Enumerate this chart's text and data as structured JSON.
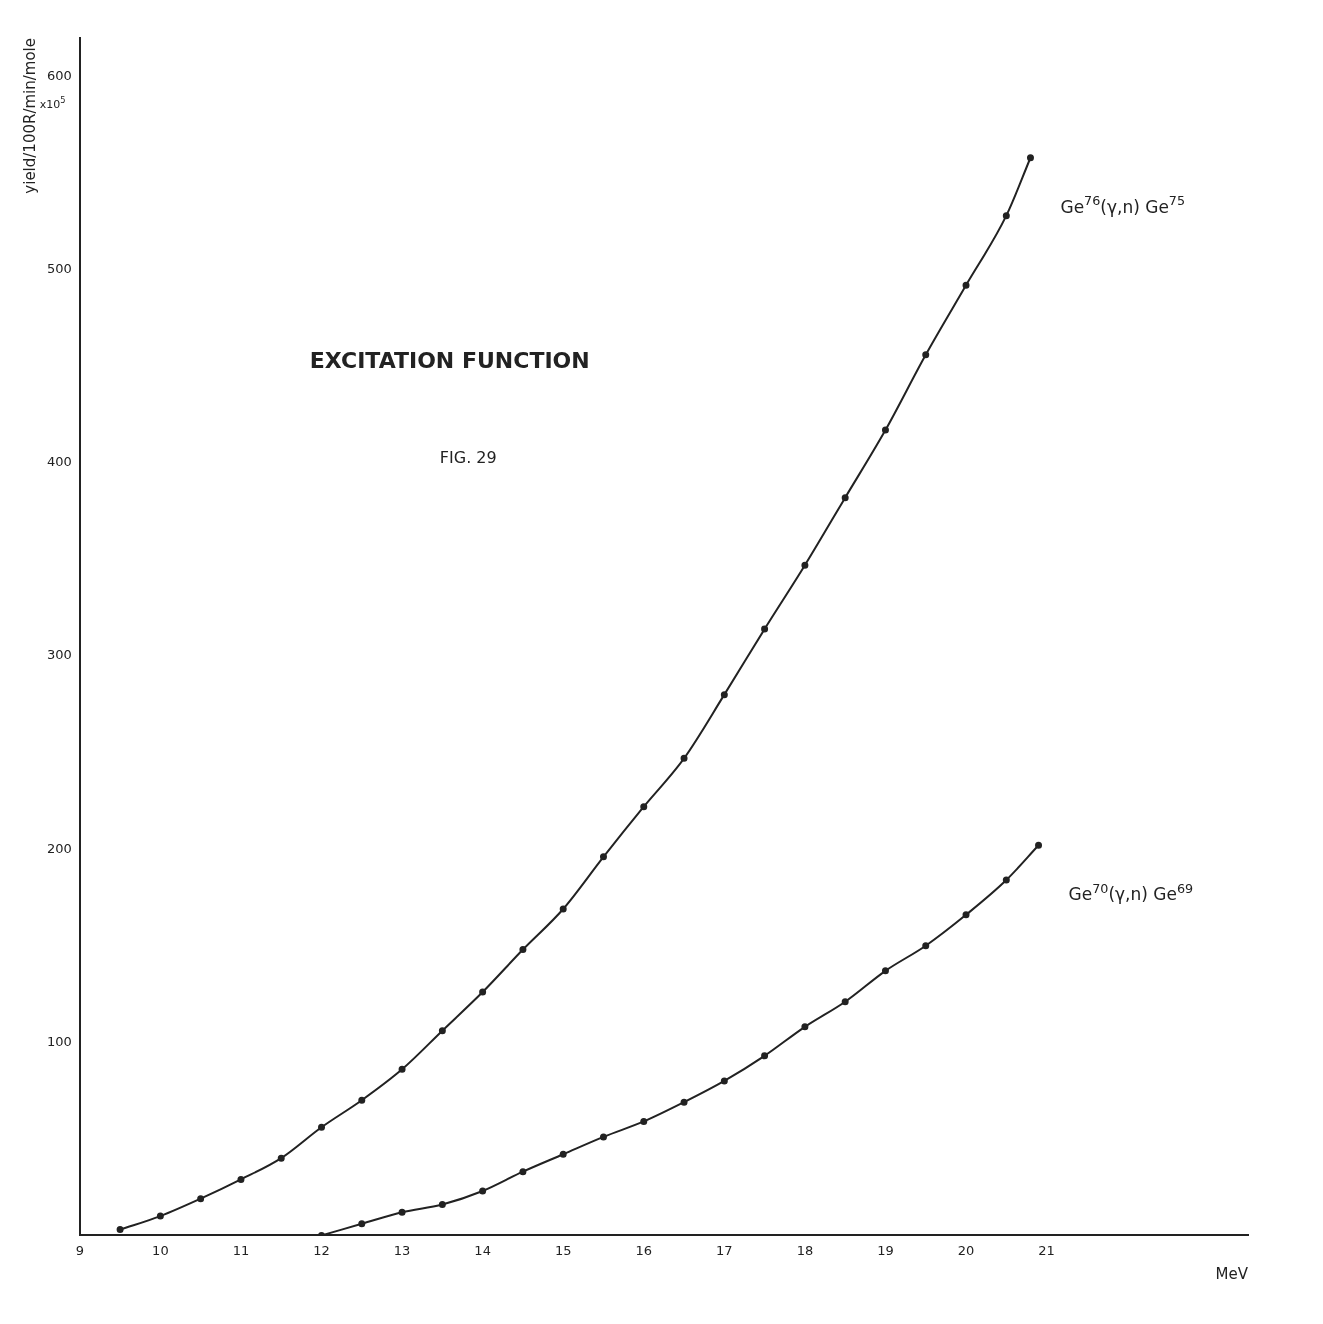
{
  "chart_data": {
    "type": "line",
    "title": "EXCITATION FUNCTION",
    "subtitle": "FIG. 29",
    "xlabel": "MeV",
    "ylabel": "yield/100R/min/mole",
    "annotations": [
      "x10$^{5}$"
    ],
    "xlim": [
      9,
      23.5
    ],
    "xticks": [
      9,
      10,
      11,
      12,
      13,
      14,
      15,
      16,
      17,
      18,
      19,
      20,
      21
    ],
    "ylim": [
      0,
      620
    ],
    "yticks": [
      100,
      200,
      300,
      400,
      500,
      600
    ],
    "grid": false,
    "legend": false,
    "marker": "circle",
    "line_style": "solid",
    "series": [
      {
        "name": "Ge$^{76}$(γ,n) Ge$^{75}$",
        "color": "#222222",
        "x": [
          9.5,
          10,
          10.5,
          11,
          11.5,
          12,
          12.5,
          13,
          13.5,
          14,
          14.5,
          15,
          15.5,
          16,
          16.5,
          17,
          17.5,
          18,
          18.5,
          19,
          19.5,
          20,
          20.5,
          20.8
        ],
        "values": [
          3,
          10,
          19,
          29,
          40,
          56,
          70,
          86,
          106,
          126,
          148,
          169,
          196,
          222,
          247,
          280,
          314,
          347,
          382,
          417,
          456,
          492,
          528,
          558
        ]
      },
      {
        "name": "Ge$^{70}$(γ,n) Ge$^{69}$",
        "color": "#222222",
        "x": [
          12,
          12.5,
          13,
          13.5,
          14,
          14.5,
          15,
          15.5,
          16,
          16.5,
          17,
          17.5,
          18,
          18.5,
          19,
          19.5,
          20,
          20.5,
          20.9
        ],
        "values": [
          0,
          6,
          12,
          16,
          23,
          33,
          42,
          51,
          59,
          69,
          80,
          93,
          108,
          121,
          137,
          150,
          166,
          184,
          202
        ]
      }
    ]
  }
}
